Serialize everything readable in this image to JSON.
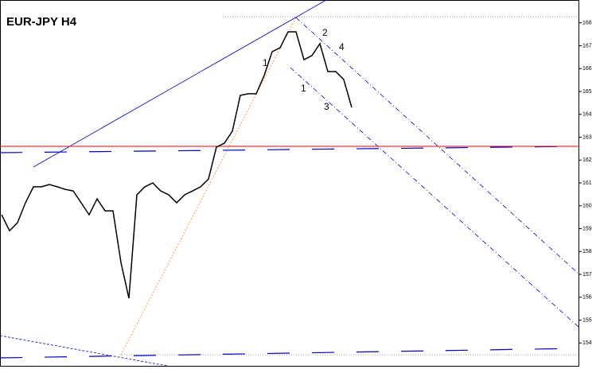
{
  "chart_data": {
    "type": "line",
    "title": "EUR-JPY H4",
    "series": [
      {
        "name": "EUR-JPY",
        "color": "#000000",
        "values": [
          159.61,
          158.91,
          159.26,
          160.13,
          160.83,
          160.83,
          160.93,
          160.83,
          160.72,
          160.65,
          160.13,
          159.61,
          160.3,
          159.78,
          159.78,
          157.52,
          155.96,
          160.48,
          160.83,
          161.0,
          160.65,
          160.48,
          160.13,
          160.48,
          160.65,
          160.83,
          161.17,
          162.57,
          162.74,
          163.26,
          164.83,
          164.9,
          164.9,
          165.7,
          166.74,
          166.91,
          167.61,
          167.61,
          166.39,
          166.57,
          167.09,
          165.87,
          165.87,
          165.52,
          164.3
        ]
      }
    ],
    "level": {
      "value": 162.6,
      "color": "#ff0000"
    },
    "ylim": [
      153,
      169
    ],
    "yticks": [
      154,
      155,
      156,
      157,
      158,
      159,
      160,
      161,
      162,
      163,
      164,
      165,
      166,
      167,
      168
    ],
    "annotations": [
      "1",
      "2",
      "3",
      "4",
      "1"
    ]
  }
}
